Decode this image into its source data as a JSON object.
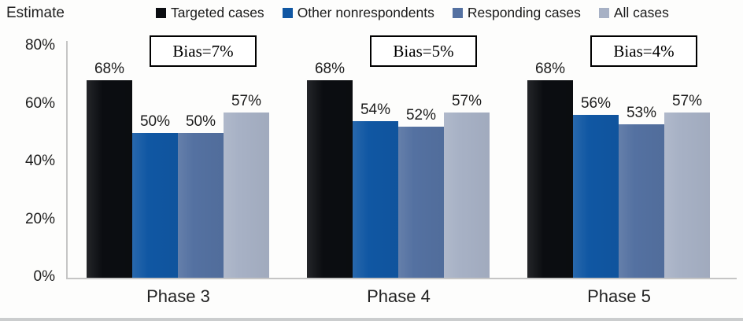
{
  "colors": {
    "targeted": "#0b0d11",
    "other_nonrespondents": "#1057a3",
    "responding": "#5471a1",
    "all_cases": "#a7b1c5",
    "axis_line": "#c5c5c5",
    "bias_box_border": "#000000"
  },
  "chart_data": {
    "type": "bar",
    "title": "",
    "ylabel": "Estimate",
    "xlabel": "",
    "ylim": [
      0,
      80
    ],
    "grid": false,
    "legend_position": "top",
    "categories": [
      "Phase 3",
      "Phase 4",
      "Phase 5"
    ],
    "yticks": [
      "80%",
      "60%",
      "40%",
      "20%",
      "0%"
    ],
    "series": [
      {
        "name": "Targeted cases",
        "color_key": "targeted",
        "values": [
          68,
          68,
          68
        ],
        "labels": [
          "68%",
          "68%",
          "68%"
        ]
      },
      {
        "name": "Other nonrespondents",
        "color_key": "other_nonrespondents",
        "values": [
          50,
          54,
          56
        ],
        "labels": [
          "50%",
          "54%",
          "56%"
        ]
      },
      {
        "name": "Responding cases",
        "color_key": "responding",
        "values": [
          50,
          52,
          53
        ],
        "labels": [
          "50%",
          "52%",
          "53%"
        ]
      },
      {
        "name": "All cases",
        "color_key": "all_cases",
        "values": [
          57,
          57,
          57
        ],
        "labels": [
          "57%",
          "57%",
          "57%"
        ]
      }
    ],
    "bias_labels": [
      "Bias=7%",
      "Bias=5%",
      "Bias=4%"
    ]
  }
}
